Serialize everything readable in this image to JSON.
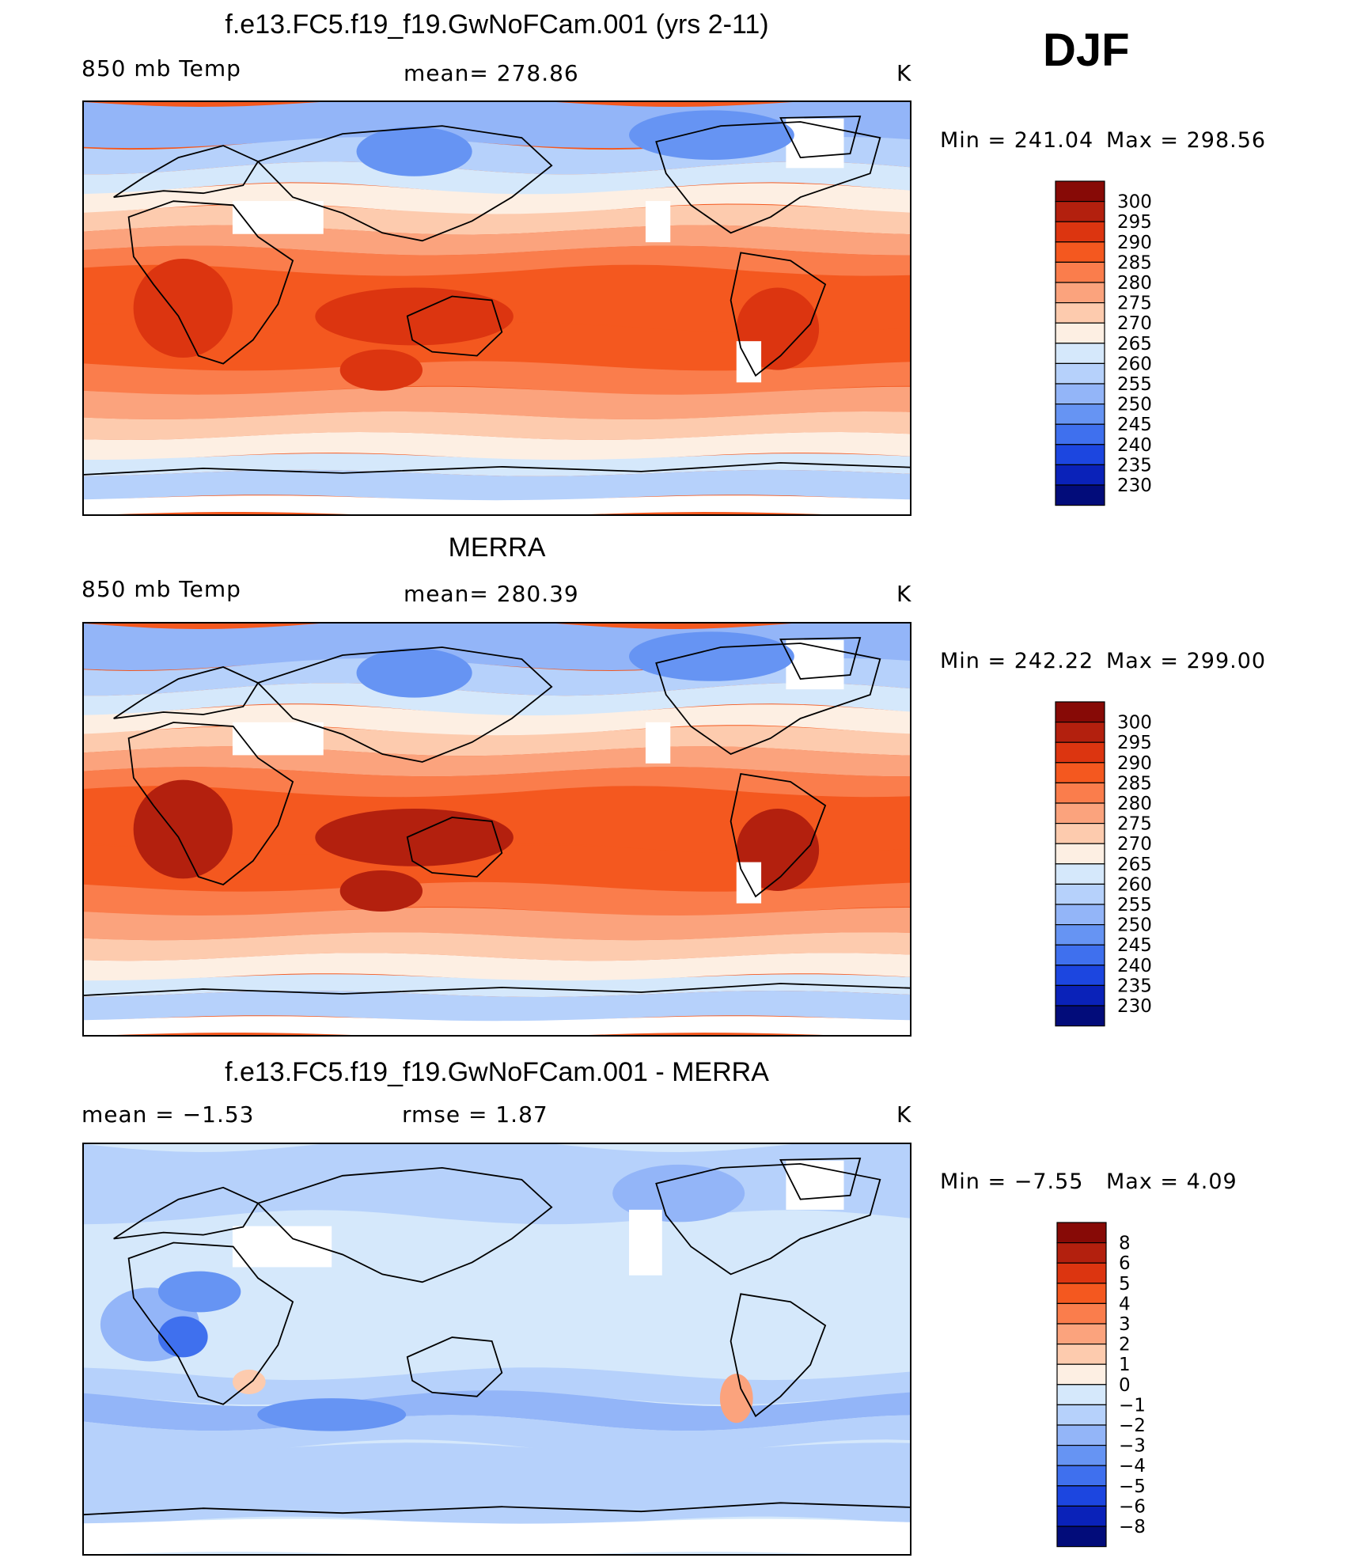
{
  "season": "DJF",
  "chart_data": [
    {
      "type": "heatmap",
      "title": "f.e13.FC5.f19_f19.GwNoFCam.001 (yrs 2-11)",
      "left_label": "850 mb Temp",
      "center_label": "mean=  278.86",
      "units": "K",
      "min_text": "Min  =  241.04",
      "max_text": "Max  =  298.56",
      "field": {
        "min": 241.04,
        "max": 298.56,
        "mean": 278.86
      },
      "colorbar": {
        "levels": [
          "300",
          "295",
          "290",
          "285",
          "280",
          "275",
          "270",
          "265",
          "260",
          "255",
          "250",
          "245",
          "240",
          "235",
          "230"
        ],
        "colors": [
          "#870a06",
          "#b3200e",
          "#dc3510",
          "#f4581f",
          "#fa7d4c",
          "#fba37d",
          "#fdcbae",
          "#fdefe3",
          "#d5e8fb",
          "#b6d1fb",
          "#93b5f8",
          "#6694f3",
          "#3f70ee",
          "#1c46e0",
          "#0a22b9",
          "#020c7a"
        ]
      }
    },
    {
      "type": "heatmap",
      "title": "MERRA",
      "left_label": "850 mb Temp",
      "center_label": "mean=  280.39",
      "units": "K",
      "min_text": "Min  =  242.22",
      "max_text": "Max  =  299.00",
      "field": {
        "min": 242.22,
        "max": 299.0,
        "mean": 280.39
      },
      "colorbar": {
        "levels": [
          "300",
          "295",
          "290",
          "285",
          "280",
          "275",
          "270",
          "265",
          "260",
          "255",
          "250",
          "245",
          "240",
          "235",
          "230"
        ],
        "colors": [
          "#870a06",
          "#b3200e",
          "#dc3510",
          "#f4581f",
          "#fa7d4c",
          "#fba37d",
          "#fdcbae",
          "#fdefe3",
          "#d5e8fb",
          "#b6d1fb",
          "#93b5f8",
          "#6694f3",
          "#3f70ee",
          "#1c46e0",
          "#0a22b9",
          "#020c7a"
        ]
      }
    },
    {
      "type": "heatmap",
      "title": "f.e13.FC5.f19_f19.GwNoFCam.001 - MERRA",
      "left_label": "mean  =    −1.53",
      "center_label": "rmse  =     1.87",
      "units": "K",
      "min_text": "Min  =    −7.55",
      "max_text": "Max  =     4.09",
      "field": {
        "min": -7.55,
        "max": 4.09,
        "mean": -1.53,
        "rmse": 1.87
      },
      "colorbar": {
        "levels": [
          "8",
          "6",
          "5",
          "4",
          "3",
          "2",
          "1",
          "0",
          "−1",
          "−2",
          "−3",
          "−4",
          "−5",
          "−6",
          "−8"
        ],
        "colors": [
          "#870a06",
          "#b3200e",
          "#dc3510",
          "#f4581f",
          "#fa7d4c",
          "#fba37d",
          "#fdcbae",
          "#fdefe3",
          "#d5e8fb",
          "#b6d1fb",
          "#93b5f8",
          "#6694f3",
          "#3f70ee",
          "#1c46e0",
          "#0a22b9",
          "#020c7a"
        ]
      }
    }
  ]
}
